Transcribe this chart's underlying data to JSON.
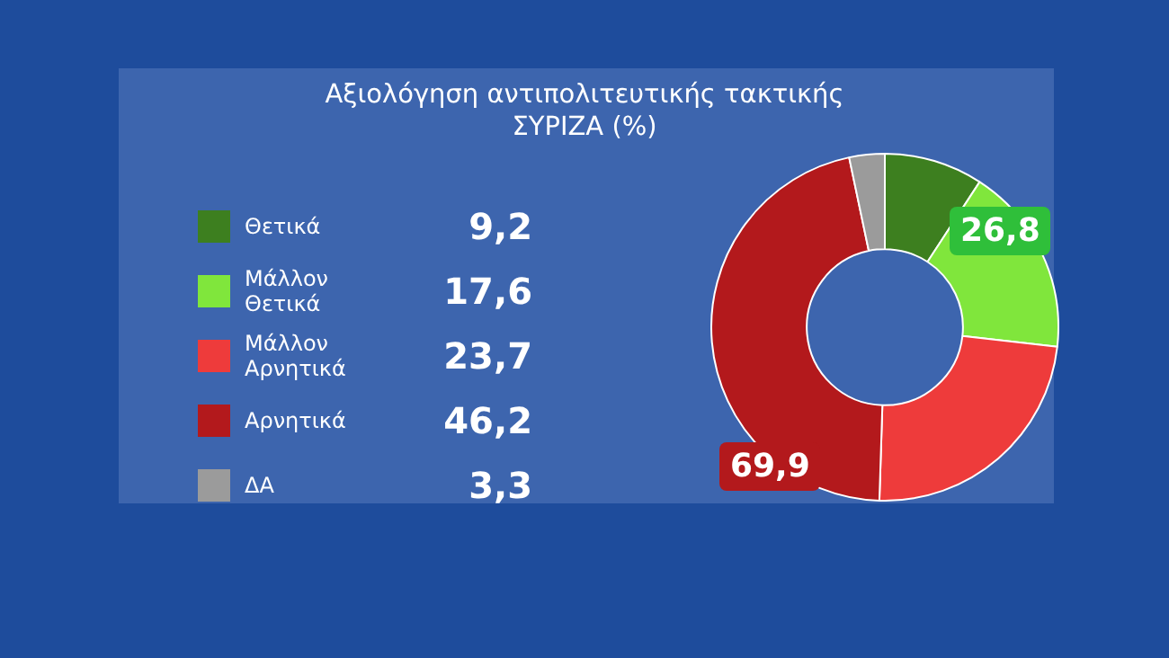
{
  "chart_data": {
    "type": "donut",
    "title": "Αξιολόγηση  αντιπολιτευτικής τακτικής ΣΥΡΙΖΑ (%)",
    "categories": [
      "Θετικά",
      "Μάλλον Θετικά",
      "Μάλλον Αρνητικά",
      "Αρνητικά",
      "ΔΑ"
    ],
    "values": [
      9.2,
      17.6,
      23.7,
      46.2,
      3.3
    ],
    "colors": [
      "#3d7f1f",
      "#80e63c",
      "#ee3b3b",
      "#b3191c",
      "#9b9b9b"
    ],
    "value_labels": [
      "9,2",
      "17,6",
      "23,7",
      "46,2",
      "3,3"
    ],
    "legend": "left",
    "annotations": [
      "26,8",
      "69,9"
    ]
  }
}
